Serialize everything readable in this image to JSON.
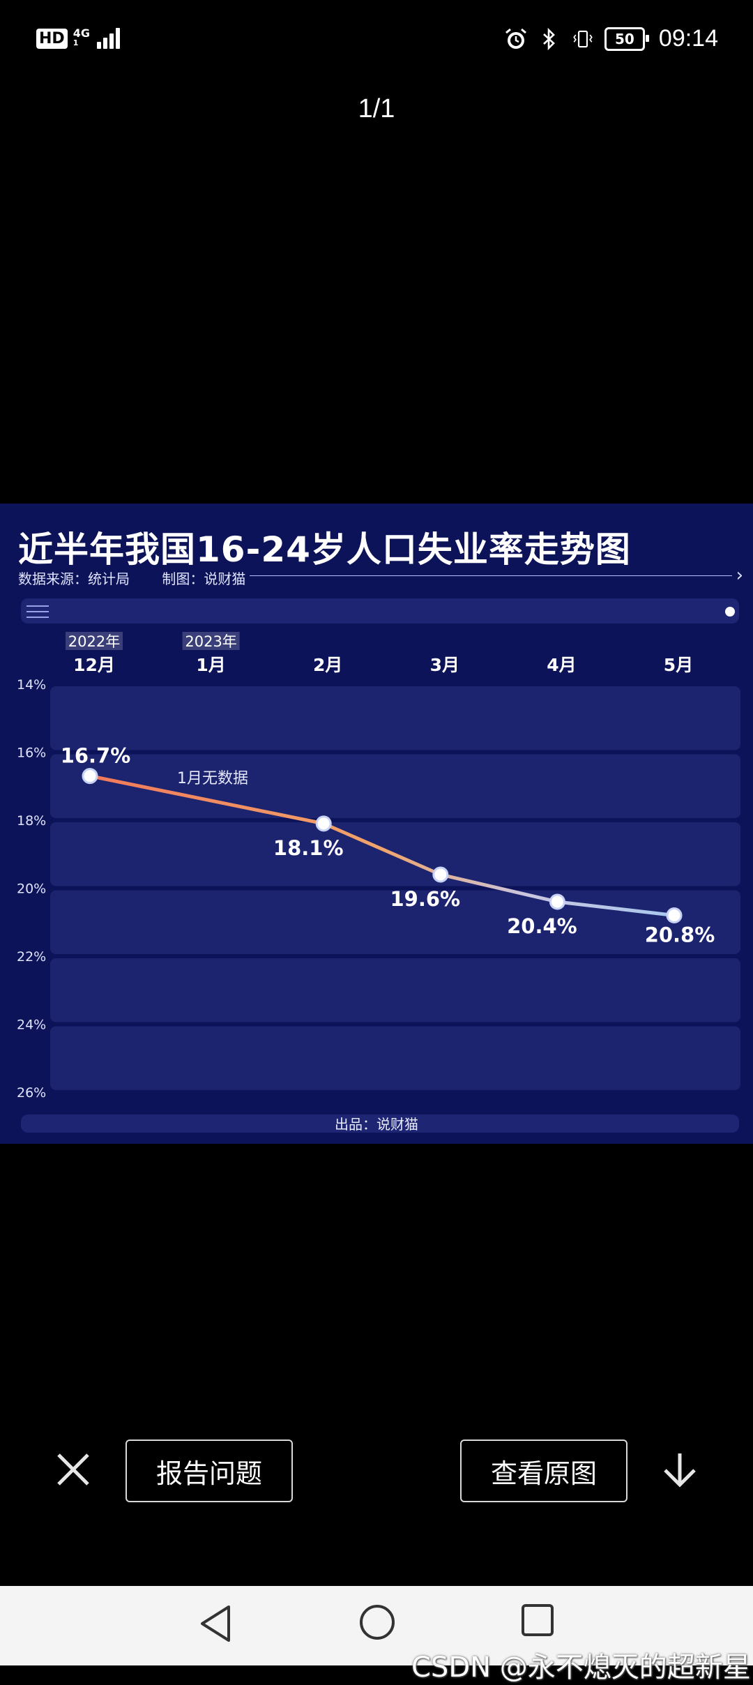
{
  "status_bar": {
    "hd_label": "HD",
    "network_type": "4G",
    "network_sub": "1",
    "battery_level": "50",
    "time": "09:14",
    "icons": [
      "alarm-icon",
      "bluetooth-icon",
      "vibrate-icon",
      "battery-icon"
    ]
  },
  "viewer": {
    "page_counter": "1/1",
    "report_label": "报告问题",
    "view_original_label": "查看原图",
    "icons": [
      "close-icon",
      "download-icon"
    ]
  },
  "image": {
    "title": "近半年我国16-24岁人口失业率走势图",
    "source": "数据来源：统计局",
    "maker": "制图：说财猫",
    "producer": "出品：说财猫",
    "year_tags": [
      "2022年",
      "2023年"
    ],
    "note": "1月无数据",
    "colors": {
      "background": "#0d1358",
      "line_start": "#f2795a",
      "line_end": "#a8c7ee"
    }
  },
  "chart_data": {
    "type": "line",
    "title": "近半年我国16-24岁人口失业率走势图",
    "categories": [
      "12月",
      "1月",
      "2月",
      "3月",
      "4月",
      "5月"
    ],
    "x_groups": [
      {
        "label": "2022年",
        "category": "12月"
      },
      {
        "label": "2023年",
        "category": "1月"
      }
    ],
    "y_ticks": [
      "14%",
      "16%",
      "18%",
      "20%",
      "22%",
      "24%",
      "26%"
    ],
    "ylim": [
      14,
      26
    ],
    "y_inverted": true,
    "series": [
      {
        "values": [
          16.7,
          null,
          18.1,
          19.6,
          20.4,
          20.8
        ],
        "labels": [
          "16.7%",
          "",
          "18.1%",
          "19.6%",
          "20.4%",
          "20.8%"
        ]
      }
    ],
    "grid": true
  },
  "nav_bar": {
    "watermark": "CSDN @永不熄灭的超新星",
    "icons": [
      "back-icon",
      "home-icon",
      "recent-apps-icon"
    ]
  }
}
